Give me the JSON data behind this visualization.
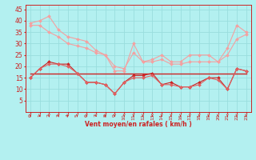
{
  "x": [
    0,
    1,
    2,
    3,
    4,
    5,
    6,
    7,
    8,
    9,
    10,
    11,
    12,
    13,
    14,
    15,
    16,
    17,
    18,
    19,
    20,
    21,
    22,
    23
  ],
  "line1": [
    39,
    40,
    42,
    36,
    33,
    32,
    31,
    27,
    25,
    18,
    18,
    30,
    22,
    23,
    25,
    22,
    22,
    25,
    25,
    25,
    22,
    28,
    38,
    35
  ],
  "line2": [
    38,
    38,
    35,
    33,
    30,
    29,
    28,
    26,
    25,
    20,
    19,
    26,
    22,
    22,
    23,
    21,
    21,
    22,
    22,
    22,
    22,
    25,
    32,
    34
  ],
  "line3": [
    15,
    19,
    22,
    21,
    21,
    17,
    13,
    13,
    12,
    8,
    13,
    16,
    16,
    17,
    12,
    13,
    11,
    11,
    13,
    15,
    15,
    10,
    19,
    18
  ],
  "line4": [
    15,
    19,
    21,
    21,
    20,
    17,
    13,
    13,
    12,
    8,
    13,
    15,
    15,
    16,
    12,
    12,
    11,
    11,
    12,
    15,
    14,
    10,
    19,
    18
  ],
  "line5_flat": [
    17,
    17,
    17,
    17,
    17,
    17,
    17,
    17,
    17,
    17,
    17,
    17,
    17,
    17,
    17,
    17,
    17,
    17,
    17,
    17,
    17,
    17,
    17,
    17
  ],
  "color_light": "#f4a0a0",
  "color_dark": "#cc2222",
  "color_mid": "#e06060",
  "bg_color": "#b3f0f0",
  "grid_color": "#99dddd",
  "xlabel": "Vent moyen/en rafales ( km/h )",
  "ylim": [
    0,
    47
  ],
  "xlim": [
    -0.5,
    23.5
  ],
  "yticks": [
    5,
    10,
    15,
    20,
    25,
    30,
    35,
    40,
    45
  ],
  "xticks": [
    0,
    1,
    2,
    3,
    4,
    5,
    6,
    7,
    8,
    9,
    10,
    11,
    12,
    13,
    14,
    15,
    16,
    17,
    18,
    19,
    20,
    21,
    22,
    23
  ]
}
